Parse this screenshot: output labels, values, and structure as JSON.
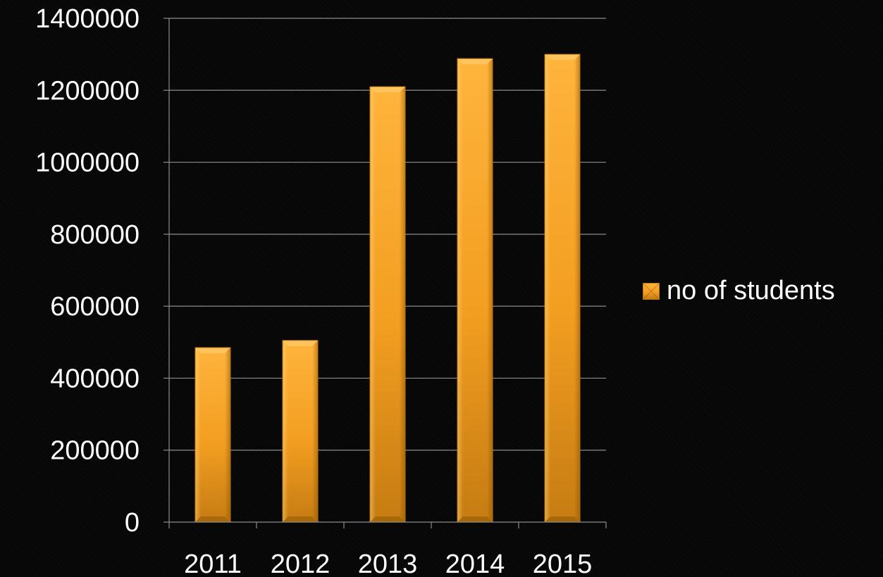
{
  "chart_data": {
    "type": "bar",
    "title": "",
    "xlabel": "",
    "ylabel": "",
    "categories": [
      "2011",
      "2012",
      "2013",
      "2014",
      "2015"
    ],
    "series": [
      {
        "name": "no of students",
        "values": [
          485000,
          505000,
          1210000,
          1288000,
          1300000
        ]
      }
    ],
    "ylim": [
      0,
      1400000
    ],
    "yticks": [
      "0",
      "200000",
      "400000",
      "600000",
      "800000",
      "1000000",
      "1200000",
      "1400000"
    ],
    "grid": true,
    "legend_position": "right",
    "colors": {
      "bar_light": "#ffb43c",
      "bar_mid": "#f29e21",
      "bar_dark": "#b87410",
      "grid": "#8c8c8c",
      "text": "#ffffff",
      "background": "#050505"
    }
  }
}
